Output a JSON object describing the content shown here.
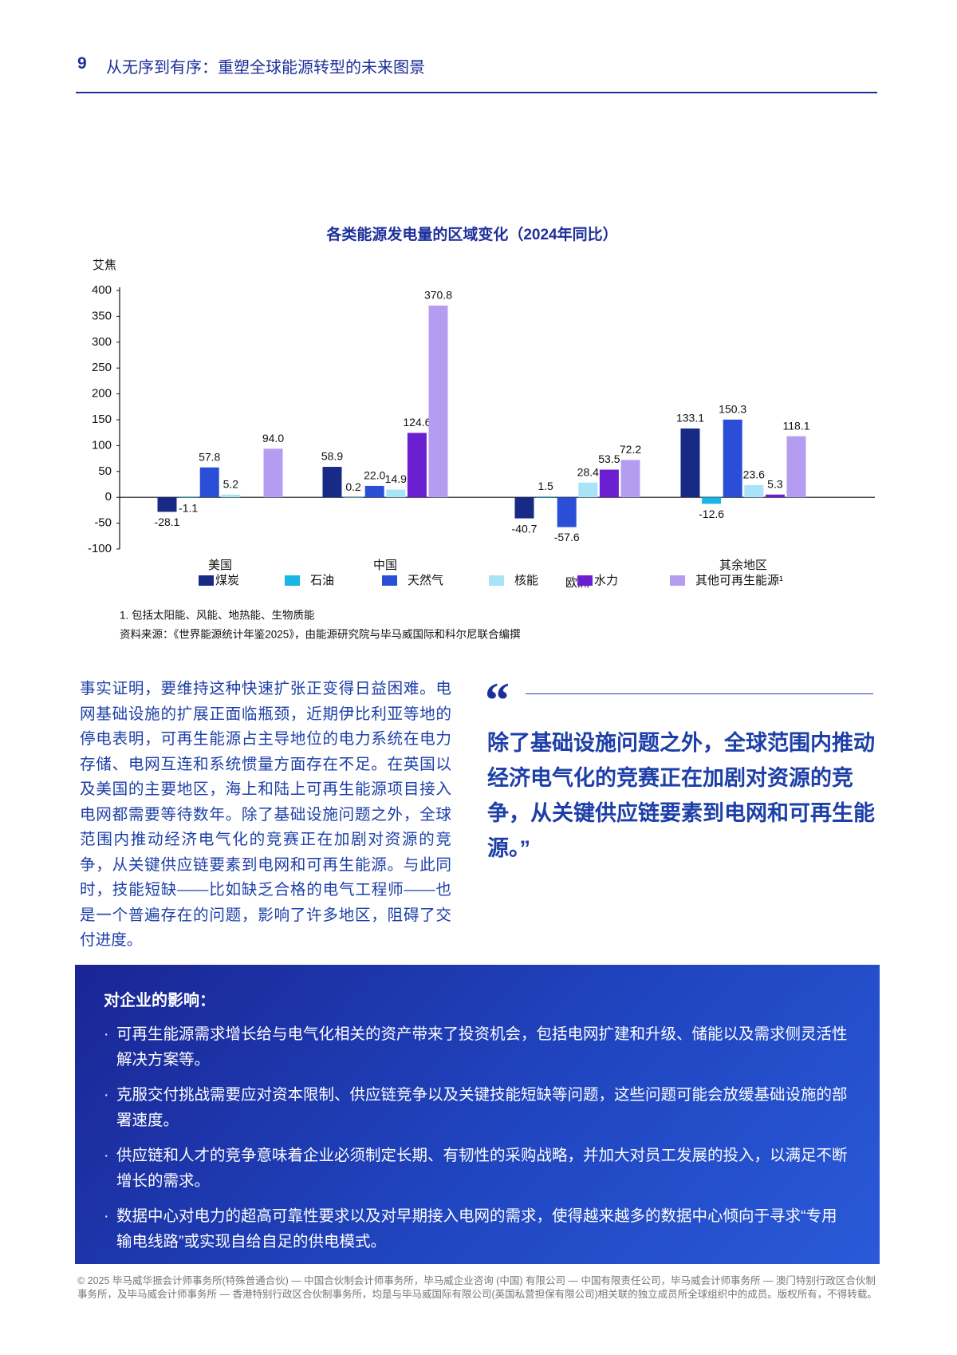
{
  "header": {
    "page_number": "9",
    "title": "从无序到有序：重塑全球能源转型的未来图景"
  },
  "chart_data": {
    "type": "bar",
    "title": "各类能源发电量的区域变化（2024年同比）",
    "y_label": "艾焦",
    "categories": [
      "美国",
      "中国",
      "欧洲",
      "其余地区"
    ],
    "ylim": [
      -100,
      400
    ],
    "yticks": [
      -100,
      -50,
      0,
      50,
      100,
      150,
      200,
      250,
      300,
      350,
      400
    ],
    "series": [
      {
        "name": "煤炭",
        "color": "#172a86",
        "values": [
          -28.1,
          58.9,
          -40.7,
          133.1
        ]
      },
      {
        "name": "石油",
        "color": "#1bb4e6",
        "values": [
          -1.1,
          0.2,
          1.5,
          -12.6
        ]
      },
      {
        "name": "天然气",
        "color": "#2a4fd6",
        "values": [
          57.8,
          22.0,
          -57.6,
          150.3
        ],
        "value_labels": [
          "57.8",
          "22.0",
          "-57.6",
          "150.3"
        ]
      },
      {
        "name": "核能",
        "color": "#a9e3f7",
        "values": [
          5.2,
          14.9,
          28.4,
          23.6
        ]
      },
      {
        "name": "水力",
        "color": "#6a1fd0",
        "values": [
          null,
          124.6,
          53.5,
          5.3
        ]
      },
      {
        "name": "其他可再生能源¹",
        "color": "#b49df0",
        "values": [
          94.0,
          370.8,
          72.2,
          118.1
        ],
        "value_labels": [
          "94.0",
          "370.8",
          "72.2",
          "118.1"
        ]
      }
    ],
    "footnote": "1. 包括太阳能、风能、地热能、生物质能",
    "source": "资料来源：《世界能源统计年鉴2025》，由能源研究院与毕马威国际和科尔尼联合编撰"
  },
  "body": {
    "paragraph": "事实证明，要维持这种快速扩张正变得日益困难。电网基础设施的扩展正面临瓶颈，近期伊比利亚等地的停电表明，可再生能源占主导地位的电力系统在电力存储、电网互连和系统惯量方面存在不足。在英国以及美国的主要地区，海上和陆上可再生能源项目接入电网都需要等待数年。除了基础设施问题之外，全球范围内推动经济电气化的竞赛正在加剧对资源的竞争，从关键供应链要素到电网和可再生能源。与此同时，技能短缺——比如缺乏合格的电气工程师——也是一个普遍存在的问题，影响了许多地区，阻碍了交付进度。"
  },
  "quote": {
    "text": "除了基础设施问题之外，全球范围内推动经济电气化的竞赛正在加剧对资源的竞争，从关键供应链要素到电网和可再生能源。”"
  },
  "box": {
    "title": "对企业的影响：",
    "items": [
      "可再生能源需求增长给与电气化相关的资产带来了投资机会，包括电网扩建和升级、储能以及需求侧灵活性解决方案等。",
      "克服交付挑战需要应对资本限制、供应链竞争以及关键技能短缺等问题，这些问题可能会放缓基础设施的部署速度。",
      "供应链和人才的竞争意味着企业必须制定长期、有韧性的采购战略，并加大对员工发展的投入，以满足不断增长的需求。",
      "数据中心对电力的超高可靠性要求以及对早期接入电网的需求，使得越来越多的数据中心倾向于寻求“专用输电线路”或实现自给自足的供电模式。"
    ]
  },
  "footer": {
    "text": "© 2025 毕马威华振会计师事务所(特殊普通合伙) — 中国合伙制会计师事务所，毕马威企业咨询 (中国) 有限公司 — 中国有限责任公司，毕马威会计师事务所 — 澳门特别行政区合伙制事务所，及毕马威会计师事务所 — 香港特别行政区合伙制事务所，均是与毕马威国际有限公司(英国私营担保有限公司)相关联的独立成员所全球组织中的成员。版权所有，不得转载。"
  }
}
